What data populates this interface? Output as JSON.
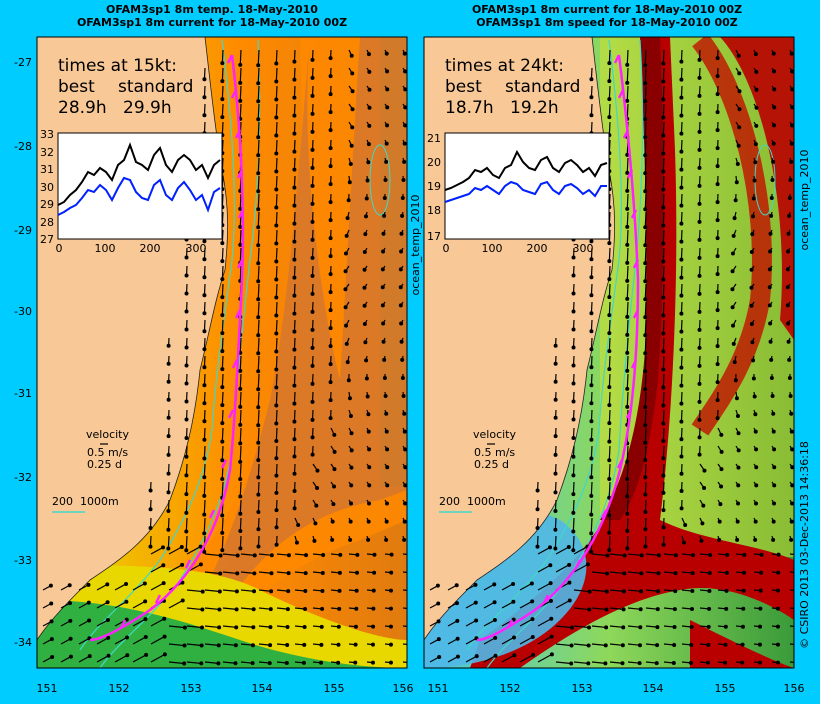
{
  "colors": {
    "background": "#00ccff",
    "land": "#f8c896",
    "track": "#ff22ff",
    "isobath": "#40d8c8"
  },
  "left_panel": {
    "title_line1": "OFAM3sp1 8m temp. 18-May-2010",
    "title_line2": "OFAM3sp1 8m current for 18-May-2010 00Z",
    "times_heading": "times at 15kt:",
    "col_best": "best",
    "col_standard": "standard",
    "best_value": "28.9h",
    "standard_value": "29.9h",
    "inset_yticks": [
      "33",
      "32",
      "31",
      "30",
      "29",
      "28",
      "27"
    ],
    "inset_xticks": [
      "0",
      "100",
      "200",
      "300"
    ],
    "velocity_label": "velocity",
    "velocity_speed": "0.5 m/s",
    "velocity_time": "0.25 d",
    "isobath_label": "200",
    "isobath_label2": "1000m"
  },
  "right_panel": {
    "title_line1": "OFAM3sp1 8m current for 18-May-2010 00Z",
    "title_line2": "OFAM3sp1 8m speed for 18-May-2010 00Z",
    "times_heading": "times at 24kt:",
    "col_best": "best",
    "col_standard": "standard",
    "best_value": "18.7h",
    "standard_value": "19.2h",
    "inset_yticks": [
      "21",
      "20",
      "19",
      "18",
      "17"
    ],
    "inset_xticks": [
      "0",
      "100",
      "200",
      "300"
    ],
    "velocity_label": "velocity",
    "velocity_speed": "0.5 m/s",
    "velocity_time": "0.25 d",
    "isobath_label": "200",
    "isobath_label2": "1000m"
  },
  "axes": {
    "lat_ticks": [
      "-27",
      "-28",
      "-29",
      "-30",
      "-31",
      "-32",
      "-33",
      "-34"
    ],
    "lon_ticks": [
      "151",
      "152",
      "153",
      "154",
      "155",
      "156"
    ],
    "left_side_label": "ocean_temp_2010",
    "right_side_label": "ocean_temp_2010"
  },
  "credit": "© CSIRO 2013   03-Dec-2013 14:36:18"
}
